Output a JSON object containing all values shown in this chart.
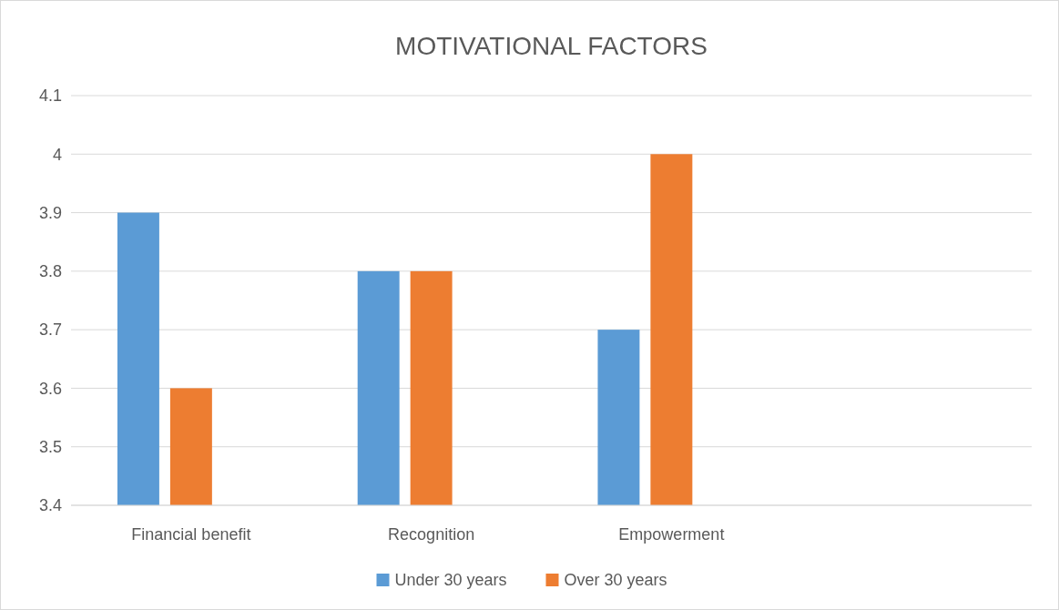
{
  "chart_data": {
    "type": "bar",
    "title": "MOTIVATIONAL FACTORS",
    "categories": [
      "Financial benefit",
      "Recognition",
      "Empowerment",
      null
    ],
    "series": [
      {
        "name": "Under 30 years",
        "color": "#5b9bd5",
        "values": [
          3.9,
          3.8,
          3.7,
          null
        ]
      },
      {
        "name": "Over 30 years",
        "color": "#ed7d31",
        "values": [
          3.6,
          3.8,
          4.0,
          null
        ]
      }
    ],
    "ylim": [
      3.4,
      4.1
    ],
    "yticks": [
      3.4,
      3.5,
      3.6,
      3.7,
      3.8,
      3.9,
      4,
      4.1
    ],
    "grid": "y",
    "legend": "bottom"
  }
}
